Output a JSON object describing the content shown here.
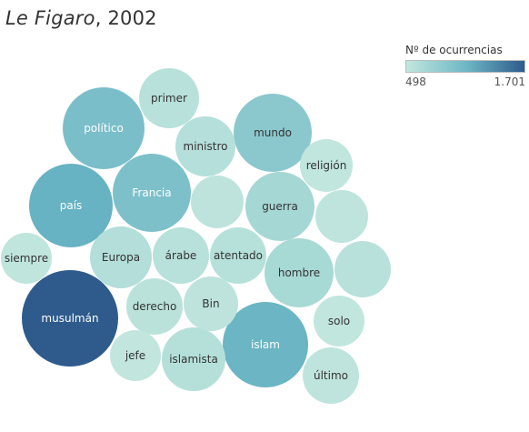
{
  "title": {
    "publication": "Le Figaro",
    "year": ", 2002"
  },
  "legend": {
    "title": "Nº de ocurrencias",
    "min_label": "498",
    "max_label": "1.701",
    "color_low": "#c2e6de",
    "color_mid": "#6fb8c6",
    "color_high": "#2e5b8c"
  },
  "chart_data": {
    "type": "packed-bubble",
    "measure": "Nº de ocurrencias",
    "color_range": [
      498,
      1701
    ],
    "words": [
      {
        "label": "musulmán",
        "value": 1701
      },
      {
        "label": "país",
        "value": 1200
      },
      {
        "label": "islam",
        "value": 1180
      },
      {
        "label": "político",
        "value": 1100
      },
      {
        "label": "Francia",
        "value": 1080
      },
      {
        "label": "mundo",
        "value": 1000
      },
      {
        "label": "guerra",
        "value": 850
      },
      {
        "label": "hombre",
        "value": 820
      },
      {
        "label": "Europa",
        "value": 680
      },
      {
        "label": "ministro",
        "value": 660
      },
      {
        "label": "islamista",
        "value": 650
      },
      {
        "label": "atentado",
        "value": 640
      },
      {
        "label": "árabe",
        "value": 630
      },
      {
        "label": "primer",
        "value": 620
      },
      {
        "label": "",
        "value": 610
      },
      {
        "label": "derecho",
        "value": 600
      },
      {
        "label": "",
        "value": 560
      },
      {
        "label": "Bin",
        "value": 560
      },
      {
        "label": "",
        "value": 550
      },
      {
        "label": "último",
        "value": 540
      },
      {
        "label": "siempre",
        "value": 520
      },
      {
        "label": "religión",
        "value": 510
      },
      {
        "label": "solo",
        "value": 505
      },
      {
        "label": "jefe",
        "value": 498
      }
    ]
  }
}
